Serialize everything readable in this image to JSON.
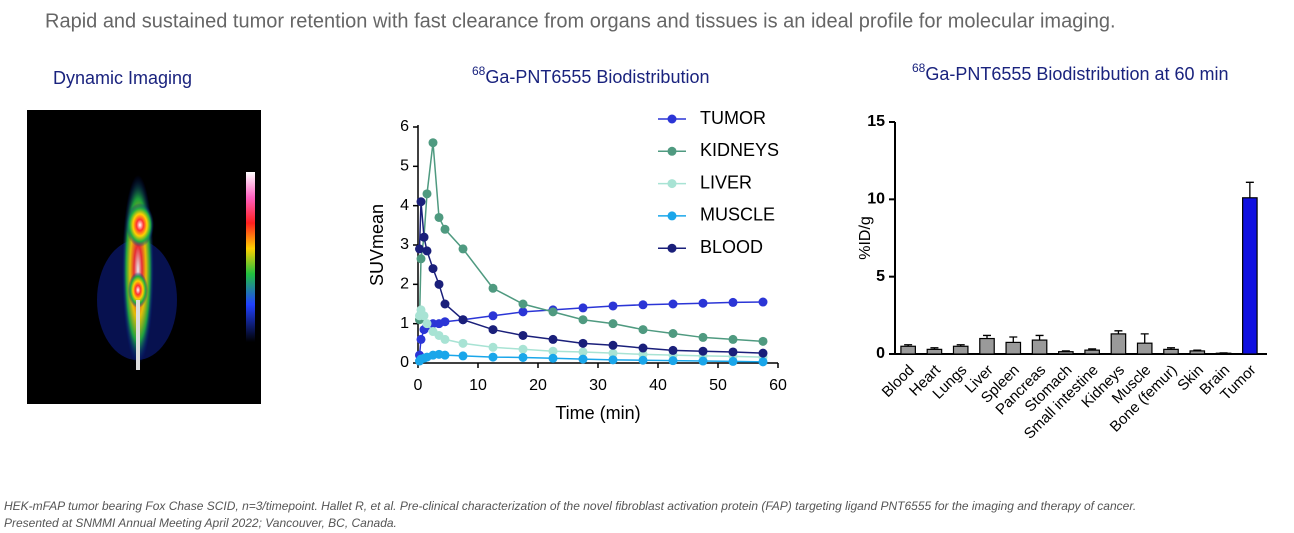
{
  "header": {
    "text": "Rapid and sustained tumor retention with fast clearance from organs and tissues is an ideal profile for molecular imaging."
  },
  "image_panel": {
    "title": "Dynamic Imaging"
  },
  "footnote": [
    "HEK-mFAP tumor bearing Fox Chase SCID, n=3/timepoint. Hallet R, et al. Pre-clinical characterization of the novel fibroblast activation protein (FAP) targeting ligand PNT6555 for the imaging and therapy of cancer.",
    "Presented at SNMMI Annual Meeting April 2022; Vancouver, BC, Canada."
  ],
  "chart_data": [
    {
      "type": "line",
      "title_superscript": "68",
      "title": "Ga-PNT6555 Biodistribution",
      "x_label": "Time  (min)",
      "y_label": "SUVmean",
      "x": [
        0.25,
        0.5,
        1,
        1.5,
        2.5,
        3.5,
        4.5,
        7.5,
        12.5,
        17.5,
        22.5,
        27.5,
        32.5,
        37.5,
        42.5,
        47.5,
        52.5,
        57.5
      ],
      "series": [
        {
          "name": "TUMOR",
          "color": "#2b35d6",
          "values": [
            0.2,
            0.6,
            0.85,
            0.95,
            1.0,
            1.0,
            1.05,
            1.1,
            1.2,
            1.3,
            1.35,
            1.4,
            1.45,
            1.48,
            1.5,
            1.52,
            1.54,
            1.55
          ]
        },
        {
          "name": "KIDNEYS",
          "color": "#4f9a80",
          "values": [
            1.1,
            2.65,
            3.2,
            4.3,
            5.6,
            3.7,
            3.4,
            2.9,
            1.9,
            1.5,
            1.3,
            1.1,
            1.0,
            0.85,
            0.75,
            0.65,
            0.6,
            0.55
          ]
        },
        {
          "name": "LIVER",
          "color": "#a8e3d4",
          "values": [
            1.2,
            1.35,
            1.2,
            1.0,
            0.8,
            0.7,
            0.6,
            0.5,
            0.4,
            0.35,
            0.3,
            0.28,
            0.25,
            0.22,
            0.2,
            0.18,
            0.17,
            0.15
          ]
        },
        {
          "name": "MUSCLE",
          "color": "#1aa6ea",
          "values": [
            0.05,
            0.1,
            0.12,
            0.15,
            0.2,
            0.22,
            0.2,
            0.18,
            0.15,
            0.14,
            0.12,
            0.1,
            0.08,
            0.07,
            0.06,
            0.05,
            0.04,
            0.03
          ]
        },
        {
          "name": "BLOOD",
          "color": "#1a1f7a",
          "values": [
            2.9,
            4.1,
            3.2,
            2.85,
            2.4,
            2.0,
            1.5,
            1.1,
            0.85,
            0.7,
            0.6,
            0.5,
            0.45,
            0.38,
            0.32,
            0.3,
            0.28,
            0.25
          ]
        }
      ],
      "xlim": [
        0,
        60
      ],
      "xticks": [
        0,
        10,
        20,
        30,
        40,
        50,
        60
      ],
      "ylim": [
        0,
        6
      ],
      "yticks": [
        0,
        1,
        2,
        3,
        4,
        5,
        6
      ],
      "legend": "upper right"
    },
    {
      "type": "bar",
      "title_superscript": "68",
      "title": "Ga-PNT6555 Biodistribution at 60 min",
      "y_label": "%ID/g",
      "categories": [
        "Blood",
        "Heart",
        "Lungs",
        "Liver",
        "Spleen",
        "Pancreas",
        "Stomach",
        "Small intestine",
        "Kidneys",
        "Muscle",
        "Bone (femur)",
        "Skin",
        "Brain",
        "Tumor"
      ],
      "values": [
        0.5,
        0.3,
        0.5,
        1.0,
        0.75,
        0.9,
        0.15,
        0.25,
        1.3,
        0.7,
        0.3,
        0.2,
        0.05,
        10.1
      ],
      "errors": [
        0.1,
        0.1,
        0.1,
        0.2,
        0.35,
        0.3,
        0.05,
        0.08,
        0.2,
        0.6,
        0.1,
        0.05,
        0.02,
        1.0
      ],
      "colors": [
        "#9a9a9a",
        "#9a9a9a",
        "#9a9a9a",
        "#9a9a9a",
        "#9a9a9a",
        "#9a9a9a",
        "#9a9a9a",
        "#9a9a9a",
        "#9a9a9a",
        "#9a9a9a",
        "#9a9a9a",
        "#9a9a9a",
        "#9a9a9a",
        "#1010e0"
      ],
      "ylim": [
        0,
        15
      ],
      "yticks": [
        0,
        5,
        10,
        15
      ]
    }
  ]
}
